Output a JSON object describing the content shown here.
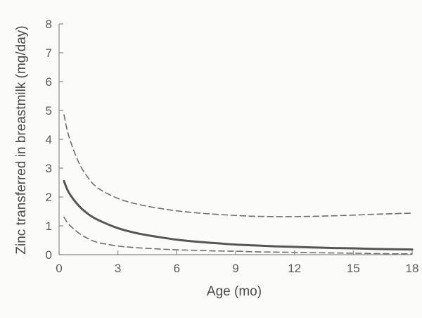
{
  "chart_data": {
    "type": "line",
    "xlabel": "Age (mo)",
    "ylabel": "Zinc transferred in breastmilk (mg/day)",
    "xlim": [
      0,
      18
    ],
    "ylim": [
      0,
      8
    ],
    "xticks": [
      0,
      3,
      6,
      9,
      12,
      15,
      18
    ],
    "yticks": [
      0,
      1,
      2,
      3,
      4,
      5,
      6,
      7,
      8
    ],
    "grid": false,
    "series": [
      {
        "style": "solid",
        "color": "#555555",
        "x": [
          0.25,
          0.5,
          1,
          1.5,
          2,
          3,
          4,
          5,
          6,
          7,
          8,
          9,
          10,
          11,
          12,
          13,
          14,
          15,
          16,
          17,
          18
        ],
        "y": [
          2.55,
          2.15,
          1.7,
          1.4,
          1.2,
          0.92,
          0.74,
          0.62,
          0.52,
          0.45,
          0.4,
          0.35,
          0.32,
          0.29,
          0.27,
          0.25,
          0.23,
          0.22,
          0.2,
          0.19,
          0.18
        ]
      },
      {
        "style": "dashed",
        "color": "#6e6e6e",
        "x": [
          0.25,
          0.5,
          1,
          1.5,
          2,
          3,
          4,
          5,
          6,
          7,
          8,
          9,
          10,
          11,
          12,
          13,
          14,
          15,
          16,
          17,
          18
        ],
        "y": [
          4.85,
          4.1,
          3.2,
          2.65,
          2.3,
          1.95,
          1.75,
          1.62,
          1.52,
          1.45,
          1.4,
          1.36,
          1.33,
          1.32,
          1.32,
          1.33,
          1.35,
          1.37,
          1.4,
          1.42,
          1.44
        ]
      },
      {
        "style": "dashed",
        "color": "#6e6e6e",
        "x": [
          0.25,
          0.5,
          1,
          1.5,
          2,
          3,
          4,
          5,
          6,
          7,
          8,
          9,
          10,
          11,
          12,
          13,
          14,
          15,
          16,
          17,
          18
        ],
        "y": [
          1.3,
          1.05,
          0.75,
          0.55,
          0.42,
          0.3,
          0.24,
          0.2,
          0.17,
          0.15,
          0.13,
          0.12,
          0.1,
          0.09,
          0.08,
          0.07,
          0.06,
          0.05,
          0.04,
          0.03,
          0.03
        ]
      }
    ]
  }
}
